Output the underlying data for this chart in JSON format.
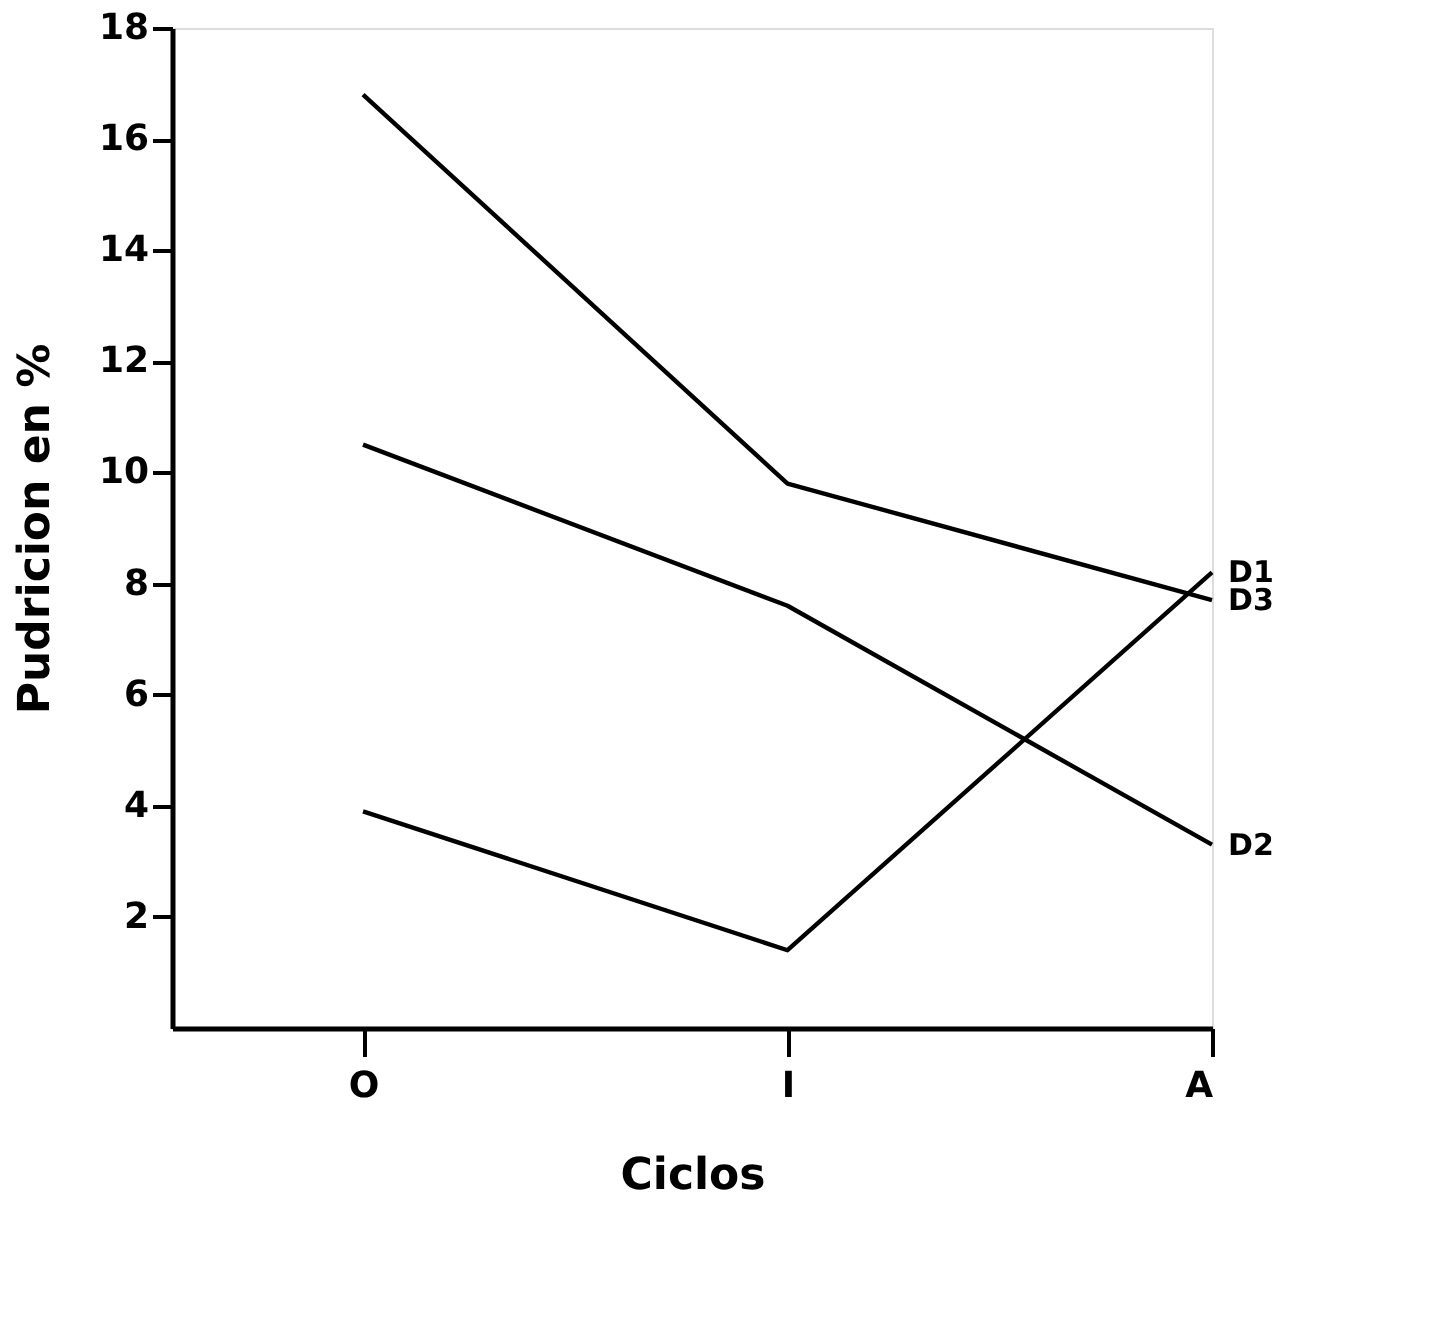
{
  "chart_data": {
    "type": "line",
    "xlabel": "Ciclos",
    "ylabel": "Pudricion en %",
    "categories": [
      "O",
      "I",
      "A"
    ],
    "series": [
      {
        "name": "D1",
        "color": "#000000",
        "values": [
          3.9,
          1.4,
          8.2
        ]
      },
      {
        "name": "D2",
        "color": "#000000",
        "values": [
          10.5,
          7.6,
          3.3
        ]
      },
      {
        "name": "D3",
        "color": "#000000",
        "values": [
          16.8,
          9.8,
          7.7
        ]
      }
    ],
    "ylim": [
      0,
      18
    ],
    "yticks": [
      2,
      4,
      6,
      8,
      10,
      12,
      14,
      16,
      18
    ],
    "grid": false,
    "legend": false,
    "marker": "none",
    "line_style": "solid"
  }
}
